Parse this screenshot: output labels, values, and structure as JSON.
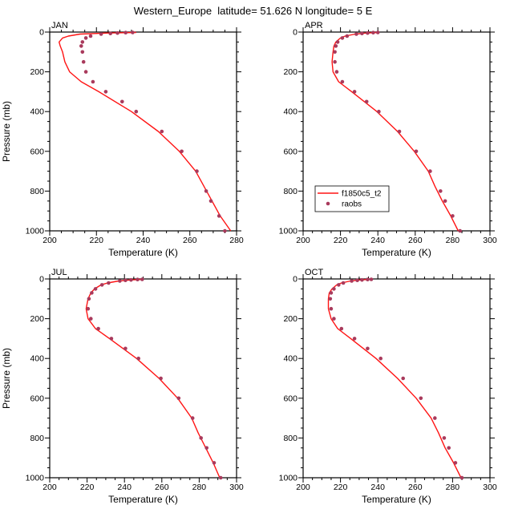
{
  "title": "Western_Europe  latitude= 51.626 N longitude= 5 E",
  "legend": {
    "panel": "APR",
    "position": "inside lower-left of APR panel",
    "entries": [
      {
        "label": "f1850c5_t2",
        "marker": "line",
        "color": "#ff1414"
      },
      {
        "label": "raobs",
        "marker": "dot",
        "color": "#a93a5c"
      }
    ]
  },
  "chart_data": [
    {
      "type": "line",
      "title": "JAN",
      "xlabel": "Temperature (K)",
      "ylabel": "Pressure (mb)",
      "xlim": [
        200,
        280
      ],
      "ylim": [
        0,
        1000
      ],
      "xticks": [
        200,
        220,
        240,
        260,
        280
      ],
      "yticks": [
        0,
        200,
        400,
        600,
        800,
        1000
      ],
      "grid": false,
      "series": [
        {
          "name": "f1850c5_t2",
          "style": "line",
          "color": "#ff1414",
          "pressure_mb": [
            1000,
            925,
            850,
            775,
            700,
            600,
            500,
            400,
            300,
            250,
            200,
            150,
            100,
            70,
            50,
            30,
            20,
            10,
            5,
            2
          ],
          "temperature_k": [
            277.5,
            273,
            269.5,
            266,
            262.5,
            255.5,
            246.5,
            235,
            221,
            213.5,
            208.5,
            206.5,
            205.5,
            204.5,
            204,
            205.5,
            208,
            213,
            225,
            237
          ]
        },
        {
          "name": "raobs",
          "style": "scatter",
          "color": "#a93a5c",
          "pressure_mb": [
            1000,
            925,
            850,
            800,
            700,
            600,
            500,
            400,
            350,
            300,
            250,
            200,
            150,
            100,
            70,
            50,
            30,
            20,
            10,
            7,
            5,
            3,
            2
          ],
          "temperature_k": [
            275,
            272.5,
            269,
            267,
            263,
            256.5,
            248,
            237,
            231,
            224,
            218.5,
            215.5,
            214.5,
            214,
            213.5,
            214,
            215.5,
            217.5,
            222,
            226,
            229,
            232.5,
            235.5
          ]
        }
      ]
    },
    {
      "type": "line",
      "title": "APR",
      "xlabel": "Temperature (K)",
      "ylabel": "",
      "xlim": [
        200,
        300
      ],
      "ylim": [
        0,
        1000
      ],
      "xticks": [
        200,
        220,
        240,
        260,
        280,
        300
      ],
      "yticks": [
        0,
        200,
        400,
        600,
        800,
        1000
      ],
      "grid": false,
      "series": [
        {
          "name": "f1850c5_t2",
          "style": "line",
          "color": "#ff1414",
          "pressure_mb": [
            1000,
            925,
            850,
            775,
            700,
            600,
            500,
            400,
            300,
            250,
            200,
            150,
            100,
            70,
            50,
            30,
            20,
            10,
            5,
            2
          ],
          "temperature_k": [
            283,
            279,
            274.5,
            270.5,
            267,
            259.5,
            250.5,
            239.5,
            226,
            219,
            216,
            215.5,
            216,
            216.5,
            217.5,
            220,
            222.5,
            228,
            234,
            240
          ]
        },
        {
          "name": "raobs",
          "style": "scatter",
          "color": "#a93a5c",
          "pressure_mb": [
            1000,
            925,
            850,
            800,
            700,
            600,
            500,
            400,
            350,
            300,
            250,
            200,
            150,
            100,
            70,
            50,
            30,
            20,
            10,
            7,
            5,
            3,
            2
          ],
          "temperature_k": [
            284,
            280,
            276,
            273.5,
            268,
            260.5,
            251.5,
            240.5,
            234,
            227.5,
            221,
            218,
            217,
            217,
            217.5,
            218.5,
            221,
            223.5,
            228.5,
            231.5,
            234.5,
            237.5,
            240
          ]
        }
      ]
    },
    {
      "type": "line",
      "title": "JUL",
      "xlabel": "Temperature (K)",
      "ylabel": "Pressure (mb)",
      "xlim": [
        200,
        300
      ],
      "ylim": [
        0,
        1000
      ],
      "xticks": [
        200,
        220,
        240,
        260,
        280,
        300
      ],
      "yticks": [
        0,
        200,
        400,
        600,
        800,
        1000
      ],
      "grid": false,
      "series": [
        {
          "name": "f1850c5_t2",
          "style": "line",
          "color": "#ff1414",
          "pressure_mb": [
            1000,
            925,
            850,
            775,
            700,
            600,
            500,
            400,
            300,
            250,
            200,
            150,
            100,
            70,
            50,
            30,
            20,
            10,
            5,
            2
          ],
          "temperature_k": [
            291,
            287.5,
            283.5,
            279.5,
            276,
            268.5,
            258.5,
            246.5,
            232,
            224.5,
            220.5,
            219.5,
            220.5,
            222,
            224,
            227.5,
            231,
            237,
            243.5,
            250
          ]
        },
        {
          "name": "raobs",
          "style": "scatter",
          "color": "#a93a5c",
          "pressure_mb": [
            1000,
            925,
            850,
            800,
            700,
            600,
            500,
            400,
            350,
            300,
            250,
            200,
            150,
            100,
            70,
            50,
            30,
            20,
            10,
            7,
            5,
            3,
            2
          ],
          "temperature_k": [
            291.5,
            288,
            284,
            281,
            276.5,
            269,
            259.5,
            247.5,
            240.5,
            233,
            226,
            222,
            220.5,
            221,
            222.5,
            224.5,
            228,
            231.5,
            237.5,
            240.5,
            243.5,
            247,
            249.5
          ]
        }
      ]
    },
    {
      "type": "line",
      "title": "OCT",
      "xlabel": "Temperature (K)",
      "ylabel": "",
      "xlim": [
        200,
        300
      ],
      "ylim": [
        0,
        1000
      ],
      "xticks": [
        200,
        220,
        240,
        260,
        280,
        300
      ],
      "yticks": [
        0,
        200,
        400,
        600,
        800,
        1000
      ],
      "grid": false,
      "series": [
        {
          "name": "f1850c5_t2",
          "style": "line",
          "color": "#ff1414",
          "pressure_mb": [
            1000,
            925,
            850,
            775,
            700,
            600,
            500,
            400,
            300,
            250,
            200,
            150,
            100,
            70,
            50,
            30,
            20,
            10,
            5,
            2
          ],
          "temperature_k": [
            284.5,
            280.5,
            276,
            272.5,
            268.5,
            260.5,
            250.5,
            239,
            225.5,
            218.5,
            215,
            213.5,
            213.5,
            214,
            215.5,
            218,
            220.5,
            225.5,
            230.5,
            235.5
          ]
        },
        {
          "name": "raobs",
          "style": "scatter",
          "color": "#a93a5c",
          "pressure_mb": [
            1000,
            925,
            850,
            800,
            700,
            600,
            500,
            400,
            350,
            300,
            250,
            200,
            150,
            100,
            70,
            50,
            30,
            20,
            10,
            7,
            5,
            3,
            2
          ],
          "temperature_k": [
            285,
            281.5,
            278,
            275.5,
            270.5,
            263,
            253.5,
            241.5,
            234.5,
            227.5,
            220.5,
            216.5,
            215,
            214.5,
            215,
            216.5,
            219,
            221.5,
            226,
            229,
            231.5,
            234.5,
            236.5
          ]
        }
      ]
    }
  ]
}
